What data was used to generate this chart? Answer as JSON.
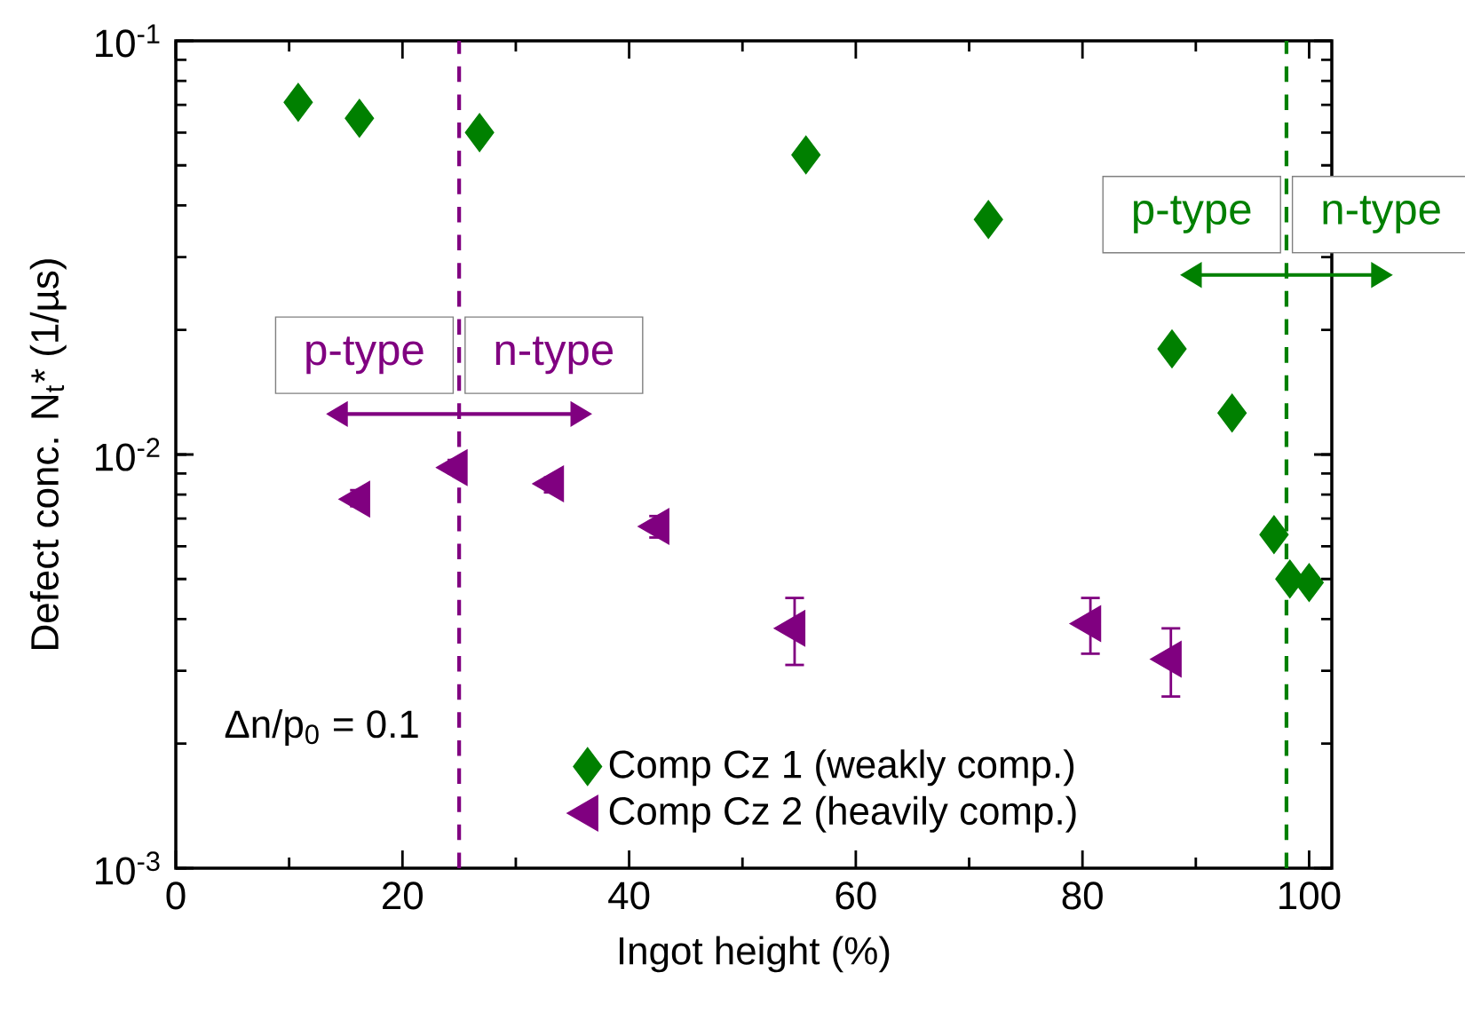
{
  "chart_data": {
    "type": "scatter",
    "xlabel": "Ingot height (%)",
    "ylabel": "Defect conc. N$_{t}$* (1/µs)",
    "xlim": [
      0,
      102
    ],
    "xticks": [
      0,
      20,
      40,
      60,
      80,
      100
    ],
    "ylim": [
      0.001,
      0.1
    ],
    "yticks": [
      {
        "value": 0.001,
        "label": "10$^{-3}$"
      },
      {
        "value": 0.01,
        "label": "10$^{-2}$"
      },
      {
        "value": 0.1,
        "label": "10$^{-1}$"
      }
    ],
    "log": "y",
    "grid": false,
    "legend": "bottom",
    "series": [
      {
        "name": "Comp Cz 1 (weakly comp.)",
        "color": "#008000",
        "marker": "diamond",
        "x": [
          10.8,
          16.2,
          26.8,
          55.6,
          71.7,
          87.9,
          93.2,
          96.9,
          98.3,
          100
        ],
        "values": [
          0.071,
          0.065,
          0.06,
          0.053,
          0.037,
          0.018,
          0.0126,
          0.0064,
          0.005,
          0.0049
        ]
      },
      {
        "name": "Comp Cz 2 (heavily comp.)",
        "color": "#800080",
        "marker": "triangle",
        "x": [
          16.2,
          24.8,
          33.3,
          42.6,
          54.6,
          80.7,
          87.8
        ],
        "values": [
          0.0078,
          0.0093,
          0.0085,
          0.0067,
          0.0038,
          0.0039,
          0.0032
        ],
        "errors": [
          [
            0.0075,
            0.0082
          ],
          [
            0.009,
            0.0097
          ],
          [
            0.0081,
            0.0088
          ],
          [
            0.0063,
            0.0071
          ],
          [
            0.0031,
            0.0045
          ],
          [
            0.0033,
            0.0045
          ],
          [
            0.0026,
            0.0038
          ]
        ]
      }
    ],
    "ref_lines": [
      {
        "axis": "x",
        "value": 25,
        "color": "#800080",
        "line_style": "dashed"
      },
      {
        "axis": "x",
        "value": 98,
        "color": "#008000",
        "line_style": "dashed"
      }
    ],
    "annotations": [
      "p-type",
      "n-type",
      "p-type",
      "n-type",
      "Δn/p$_{0}$ = 0.1"
    ]
  }
}
